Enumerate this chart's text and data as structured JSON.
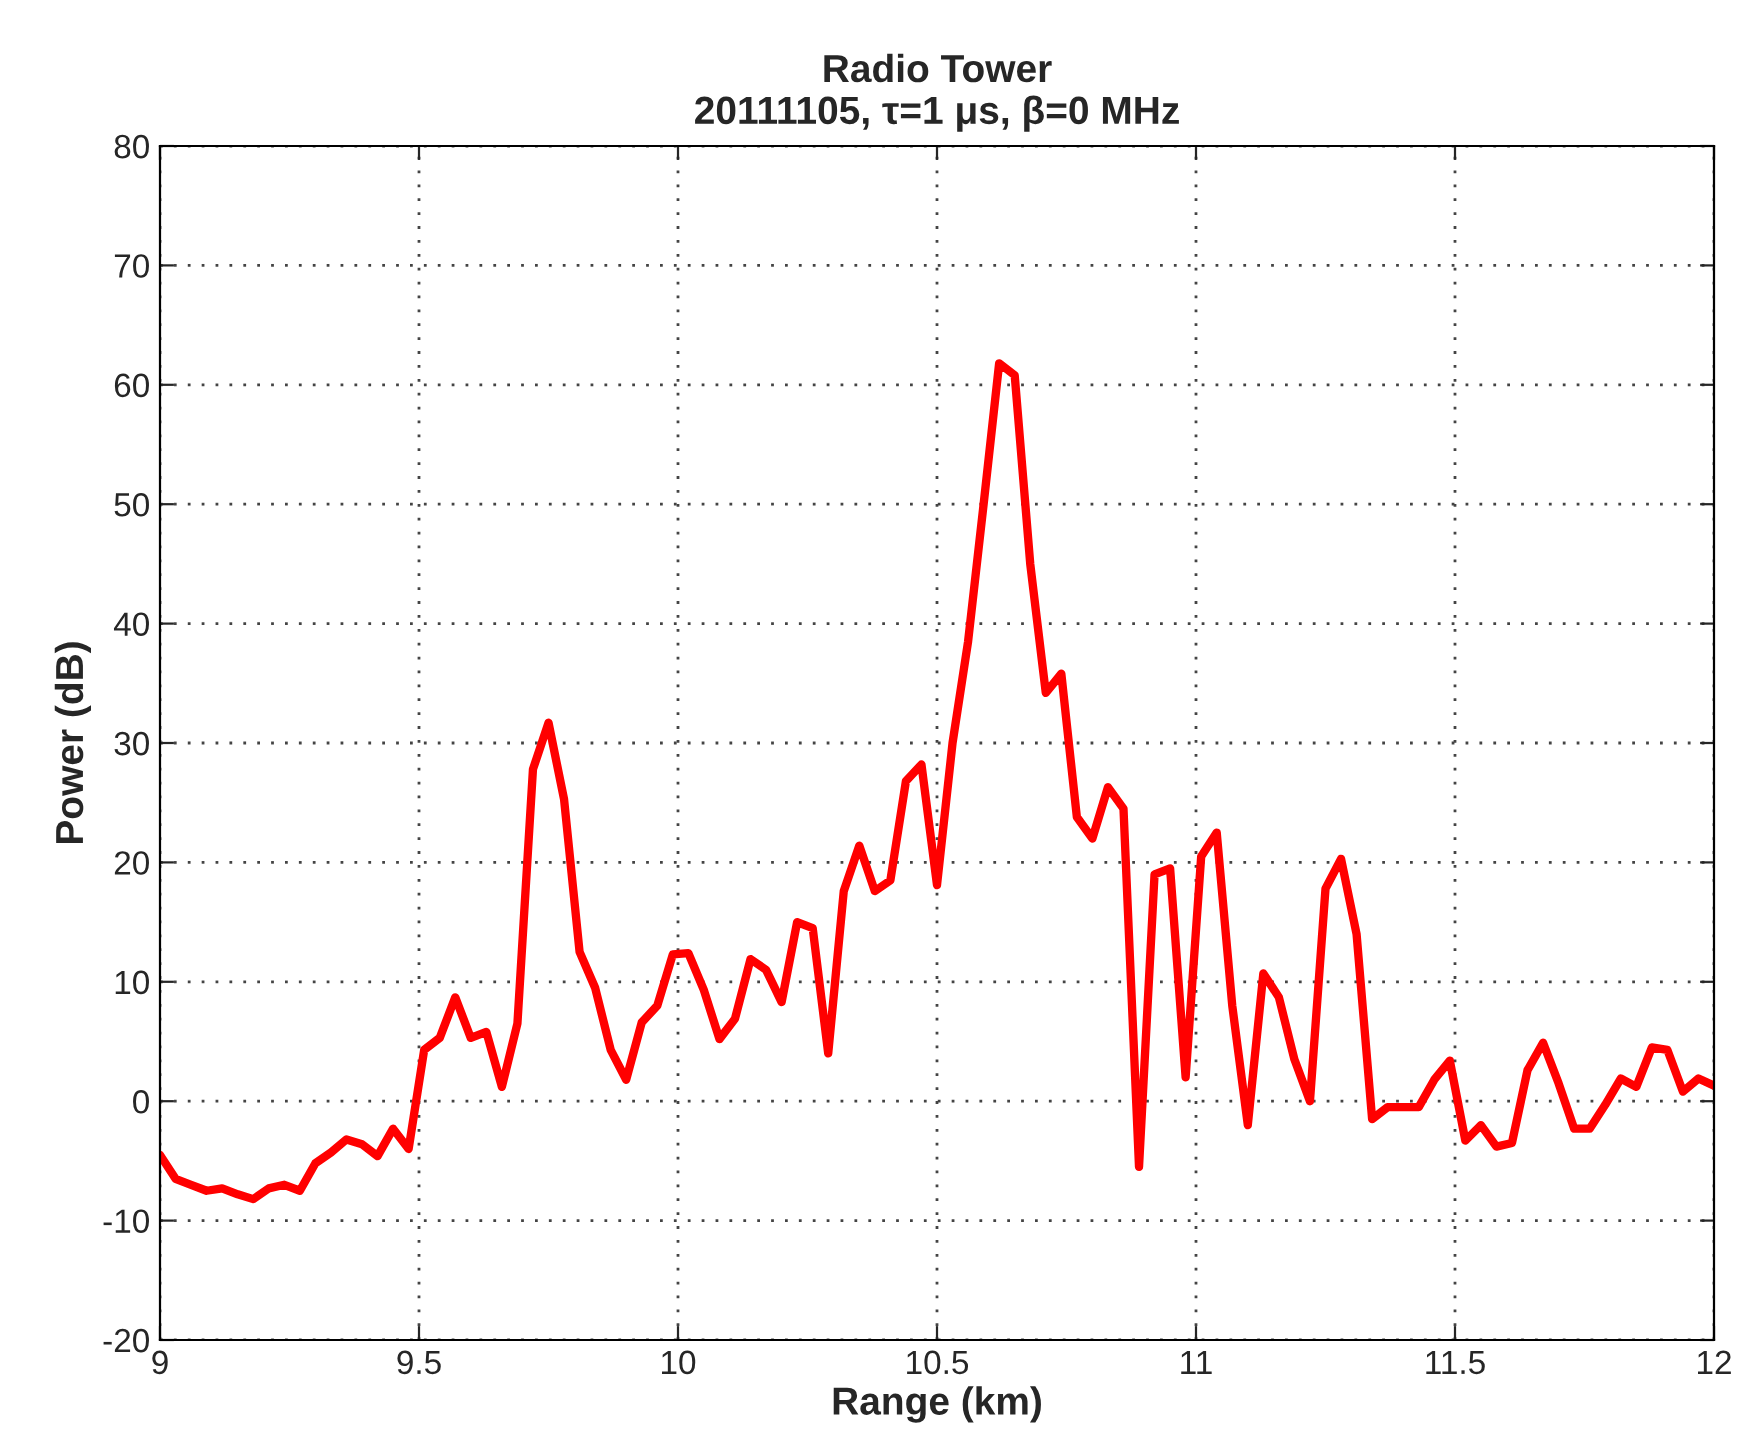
{
  "chart_data": {
    "type": "line",
    "title": "Radio Tower\n20111105, τ=1 μs, β=0 MHz",
    "xlabel": "Range (km)",
    "ylabel": "Power (dB)",
    "x": [
      9.0,
      9.03,
      9.06,
      9.09,
      9.12,
      9.15,
      9.18,
      9.21,
      9.24,
      9.27,
      9.3,
      9.33,
      9.36,
      9.39,
      9.42,
      9.45,
      9.48,
      9.51,
      9.54,
      9.57,
      9.6,
      9.63,
      9.66,
      9.69,
      9.72,
      9.75,
      9.78,
      9.81,
      9.84,
      9.87,
      9.9,
      9.93,
      9.96,
      9.99,
      10.02,
      10.05,
      10.08,
      10.11,
      10.14,
      10.17,
      10.2,
      10.23,
      10.26,
      10.29,
      10.32,
      10.35,
      10.38,
      10.41,
      10.44,
      10.47,
      10.5,
      10.53,
      10.56,
      10.59,
      10.62,
      10.65,
      10.68,
      10.71,
      10.74,
      10.77,
      10.8,
      10.83,
      10.86,
      10.89,
      10.92,
      10.95,
      10.98,
      11.01,
      11.04,
      11.07,
      11.1,
      11.13,
      11.16,
      11.19,
      11.22,
      11.25,
      11.28,
      11.31,
      11.34,
      11.37,
      11.4,
      11.43,
      11.46,
      11.49,
      11.52,
      11.55,
      11.58,
      11.61,
      11.64,
      11.67,
      11.7,
      11.73,
      11.76,
      11.79,
      11.82,
      11.85,
      11.88,
      11.91,
      11.94,
      11.97,
      12.0
    ],
    "series": [
      {
        "color": "#ff0000",
        "values": [
          -4.5,
          -6.5,
          -7,
          -7.5,
          -7.3,
          -7.8,
          -8.2,
          -7.3,
          -7,
          -7.5,
          -5.2,
          -4.3,
          -3.2,
          -3.6,
          -4.6,
          -2.3,
          -4,
          4.3,
          5.3,
          8.7,
          5.3,
          5.8,
          1.2,
          6.5,
          27.8,
          31.7,
          25.3,
          12.5,
          9.5,
          4.3,
          1.8,
          6.6,
          8,
          12.3,
          12.4,
          9.3,
          5.2,
          6.9,
          11.9,
          11,
          8.3,
          15,
          14.5,
          4,
          17.6,
          21.4,
          17.6,
          18.5,
          26.8,
          28.2,
          18.1,
          30,
          38.5,
          50,
          61.8,
          60.8,
          45,
          34.2,
          35.8,
          23.8,
          22,
          26.3,
          24.5,
          -5.5,
          19,
          19.5,
          2,
          20.5,
          22.5,
          8,
          -2,
          10.7,
          8.7,
          3.5,
          0,
          17.8,
          20.3,
          14,
          -1.5,
          -0.5,
          -0.5,
          -0.5,
          1.8,
          3.4,
          -3.3,
          -2,
          -3.8,
          -3.5,
          2.6,
          4.9,
          1.5,
          -2.3,
          -2.3,
          -0.3,
          1.9,
          1.2,
          4.5,
          4.3,
          0.8,
          1.9,
          1.3
        ]
      }
    ],
    "xlim": [
      9,
      12
    ],
    "xticks": [
      9,
      9.5,
      10,
      10.5,
      11,
      11.5,
      12
    ],
    "ylim": [
      -20,
      80
    ],
    "yticks": [
      -20,
      -10,
      0,
      10,
      20,
      30,
      40,
      50,
      60,
      70,
      80
    ],
    "grid": true,
    "line_style": "solid",
    "marker": "none"
  }
}
